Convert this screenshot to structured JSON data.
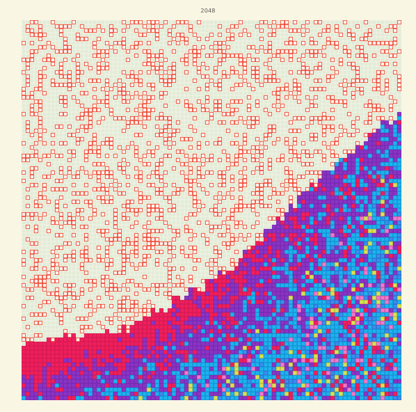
{
  "game": {
    "title": "2048"
  },
  "board": {
    "rows": 91,
    "cols": 91,
    "empty_color": "#e3ebd6",
    "grid_line_color": "#f6f8ee",
    "tile_styles": [
      {
        "value": 2,
        "fill": "#fbf3ee",
        "border": "#f0452f"
      },
      {
        "value": 4,
        "fill": "#f01f5c",
        "border": "#d81b55"
      },
      {
        "value": 8,
        "fill": "#8a35c4",
        "border": "#7a2bb5"
      },
      {
        "value": 16,
        "fill": "#1fb3ef",
        "border": "#1596d6"
      },
      {
        "value": 32,
        "fill": "#3a8ff0",
        "border": "#2e6fd0"
      },
      {
        "value": 64,
        "fill": "#d8e05a",
        "border": "#b9c23a"
      },
      {
        "value": 128,
        "fill": "#f07acb",
        "border": "#d05aab"
      }
    ]
  }
}
